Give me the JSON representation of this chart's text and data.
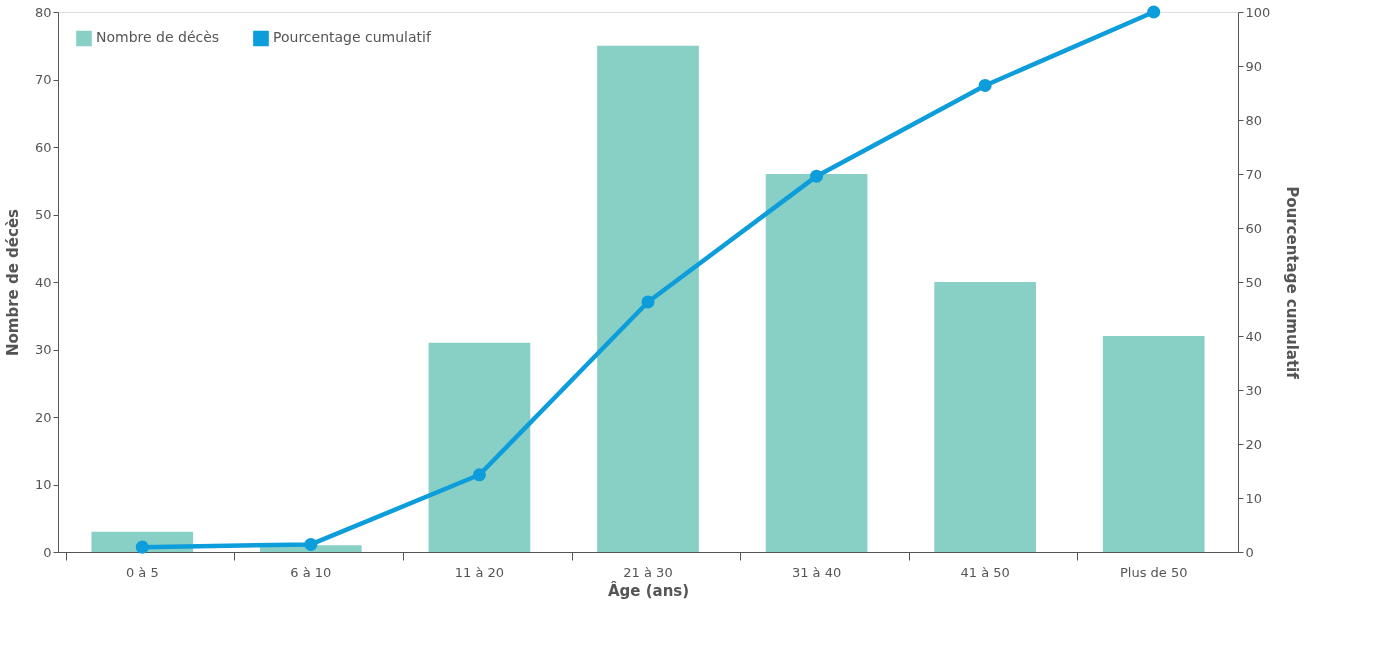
{
  "chart_data": {
    "type": "bar",
    "xlabel": "Âge (ans)",
    "ylabel": "Nombre de décès",
    "y2label": "Pourcentage cumulatif",
    "categories": [
      "0 à 5",
      "6 à 10",
      "11 à 20",
      "21 à 30",
      "31 à 40",
      "41 à 50",
      "Plus de 50"
    ],
    "series": [
      {
        "name": "Nombre de décès",
        "color": "#88d0c6",
        "values": [
          3,
          1,
          31,
          75,
          56,
          40,
          32
        ]
      },
      {
        "name": "Pourcentage cumulatif",
        "type": "line",
        "axis": "y2",
        "color": "#0d9ddb",
        "values": [
          0.9,
          1.4,
          14.3,
          46.3,
          69.6,
          86.4,
          100
        ]
      }
    ],
    "ylim": [
      0,
      80
    ],
    "yticks": [
      0,
      10,
      20,
      30,
      40,
      50,
      60,
      70,
      80
    ],
    "y2lim": [
      0,
      100
    ],
    "y2ticks": [
      0,
      10,
      20,
      30,
      40,
      50,
      60,
      70,
      80,
      90,
      100
    ],
    "grid": false,
    "legend": "top left",
    "marker": "circle",
    "line_style": "solid"
  }
}
